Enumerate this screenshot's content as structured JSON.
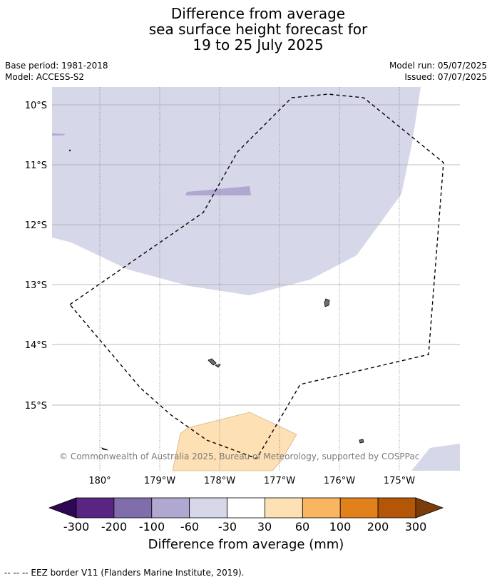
{
  "title": {
    "line1": "Difference from average",
    "line2": "sea surface height forecast for",
    "line3": "19 to 25 July 2025"
  },
  "meta": {
    "base_period": "Base period: 1981-2018",
    "model": "Model: ACCESS-S2",
    "model_run": "Model run: 05/07/2025",
    "issued": "Issued: 07/07/2025"
  },
  "map": {
    "lat_labels": [
      "10°S",
      "11°S",
      "12°S",
      "13°S",
      "14°S",
      "15°S"
    ],
    "lon_labels": [
      "180°",
      "179°W",
      "178°W",
      "177°W",
      "176°W",
      "175°W"
    ],
    "copyright": "© Commonwealth of Australia 2025, Bureau of Meteorology, supported by COSPPac"
  },
  "colorbar": {
    "ticks": [
      "-300",
      "-200",
      "-100",
      "-60",
      "-30",
      "30",
      "60",
      "100",
      "200",
      "300"
    ],
    "colors": [
      "#5a2483",
      "#7f6eab",
      "#b0a8d0",
      "#d6d7e8",
      "#ffffff",
      "#fde0b4",
      "#f9b55f",
      "#e0811b",
      "#b35607"
    ],
    "under_color": "#2e0854",
    "over_color": "#7a3d0a",
    "label": "Difference from average (mm)"
  },
  "footnote": "--  --  -- EEZ border V11 (Flanders Marine Institute, 2019)."
}
